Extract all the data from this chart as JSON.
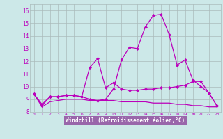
{
  "xlabel": "Windchill (Refroidissement éolien,°C)",
  "x_values": [
    0,
    1,
    2,
    3,
    4,
    5,
    6,
    7,
    8,
    9,
    10,
    11,
    12,
    13,
    14,
    15,
    16,
    17,
    18,
    19,
    20,
    21,
    22,
    23
  ],
  "series1": [
    9.4,
    8.6,
    9.2,
    9.2,
    9.3,
    9.3,
    9.2,
    9.0,
    8.9,
    9.0,
    9.8,
    12.1,
    13.1,
    13.0,
    14.7,
    15.6,
    15.7,
    14.1,
    11.7,
    12.1,
    10.5,
    10.0,
    9.5,
    8.5
  ],
  "series2": [
    9.4,
    8.5,
    9.2,
    9.2,
    9.3,
    9.3,
    9.2,
    11.5,
    12.2,
    9.9,
    10.3,
    9.8,
    9.7,
    9.7,
    9.8,
    9.8,
    9.9,
    9.9,
    10.0,
    10.1,
    10.4,
    10.4,
    9.5,
    8.5
  ],
  "series3": [
    9.4,
    8.4,
    8.8,
    8.9,
    9.0,
    9.0,
    9.0,
    8.9,
    8.9,
    8.9,
    8.9,
    8.8,
    8.8,
    8.8,
    8.8,
    8.7,
    8.7,
    8.7,
    8.6,
    8.6,
    8.5,
    8.5,
    8.4,
    8.4
  ],
  "ylim": [
    8.0,
    16.5
  ],
  "xlim": [
    -0.5,
    23.5
  ],
  "yticks": [
    8,
    9,
    10,
    11,
    12,
    13,
    14,
    15,
    16
  ],
  "xticks": [
    0,
    1,
    2,
    3,
    4,
    5,
    6,
    7,
    8,
    9,
    10,
    11,
    12,
    13,
    14,
    15,
    16,
    17,
    18,
    19,
    20,
    21,
    22,
    23
  ],
  "line_color": "#bb00bb",
  "bg_color": "#cce8e8",
  "grid_color": "#aabbbb",
  "xlabel_bg": "#9966aa",
  "xlabel_fg": "#ffffff"
}
